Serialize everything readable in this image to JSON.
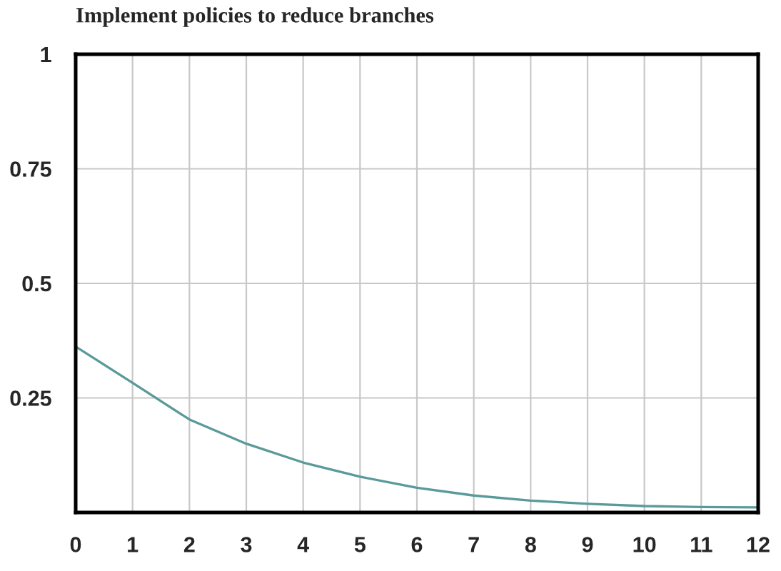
{
  "chart_data": {
    "type": "line",
    "title": "Implement policies to reduce branches",
    "x": [
      0,
      1,
      2,
      3,
      4,
      5,
      6,
      7,
      8,
      9,
      10,
      11,
      12
    ],
    "series": [
      {
        "color": "#5a9a9a",
        "values": [
          0.362,
          0.283,
          0.203,
          0.15,
          0.109,
          0.078,
          0.054,
          0.037,
          0.026,
          0.019,
          0.014,
          0.012,
          0.011
        ]
      }
    ],
    "xlim": [
      0,
      12
    ],
    "ylim": [
      0,
      1
    ],
    "xticks": [
      0,
      1,
      2,
      3,
      4,
      5,
      6,
      7,
      8,
      9,
      10,
      11,
      12
    ],
    "yticks": [
      0.25,
      0.5,
      0.75,
      1
    ],
    "grid": true,
    "marker": "none",
    "line_style": "solid"
  }
}
